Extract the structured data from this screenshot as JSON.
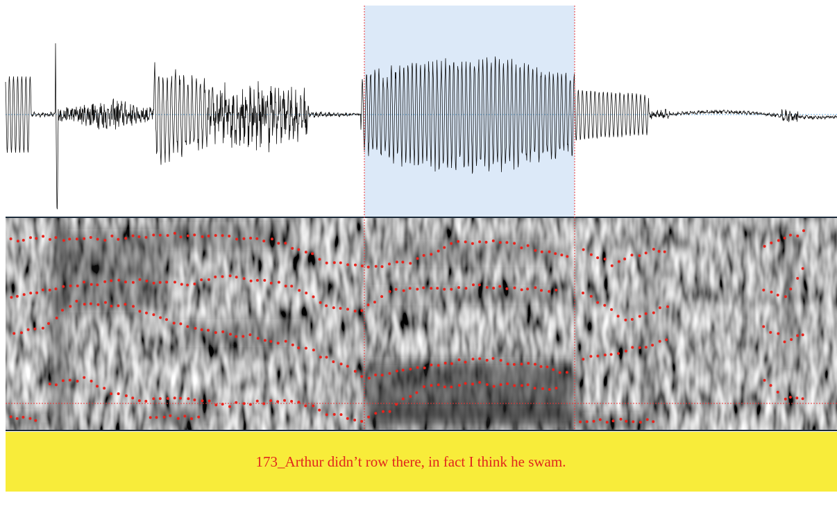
{
  "transcript": {
    "text": "173_Arthur didn’t row there, in fact I think he swam."
  }
}
